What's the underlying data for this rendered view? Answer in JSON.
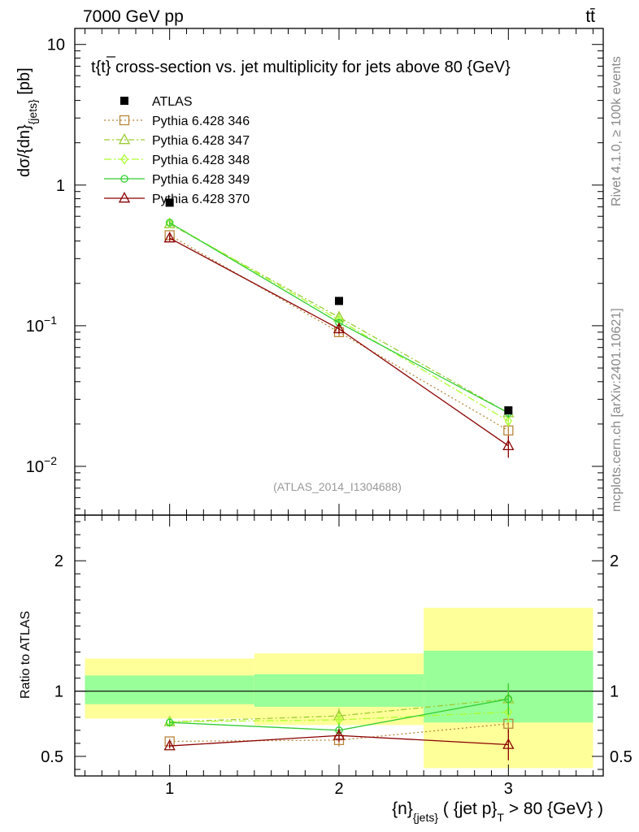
{
  "header": {
    "energy_label": "7000 GeV pp",
    "process_label": "tt̄"
  },
  "side_labels": {
    "rivet": "Rivet 4.1.0, ≥ 100k events",
    "mcplots": "mcplots.cern.ch [arXiv:2401.10621]"
  },
  "chart_data": [
    {
      "type": "line",
      "title": "t{t} cross-section vs. jet multiplicity for jets above 80 {GeV}",
      "title_main": "t",
      "title_brace": "{t}",
      "title_rest": " cross-section vs. jet multiplicity for jets above 80 {GeV}",
      "analysis_tag": "(ATLAS_2014_I1304688)",
      "ylabel": "dσ/{dn}",
      "ylabel_sub": "{jets}",
      "ylabel_unit": " [pb]",
      "yscale": "log",
      "ylim": [
        0.0045,
        13
      ],
      "xlim": [
        0.44,
        3.56
      ],
      "y_ticks": [
        {
          "value": 0.01,
          "mantissa": "10",
          "exp": "−2"
        },
        {
          "value": 0.1,
          "mantissa": "10",
          "exp": "−1"
        },
        {
          "value": 1,
          "mantissa": "1",
          "exp": ""
        },
        {
          "value": 10,
          "mantissa": "10",
          "exp": ""
        }
      ],
      "legend_position": "top-left",
      "x": [
        1,
        2,
        3
      ],
      "data_series": {
        "name": "ATLAS",
        "values": [
          0.75,
          0.15,
          0.025
        ],
        "color": "#000000"
      },
      "series": [
        {
          "name": "Pythia 6.428 346",
          "values": [
            0.44,
            0.09,
            0.018
          ],
          "errors": [
            0.02,
            0.006,
            0.0015
          ],
          "color": "#b8863b",
          "dash": "2,3",
          "marker": "square"
        },
        {
          "name": "Pythia 6.428 347",
          "values": [
            0.53,
            0.115,
            0.024
          ],
          "errors": [
            0.02,
            0.007,
            0.0018
          ],
          "color": "#9acd32",
          "dash": "7,3,2,3",
          "marker": "triangle"
        },
        {
          "name": "Pythia 6.428 348",
          "values": [
            0.54,
            0.11,
            0.021
          ],
          "errors": [
            0.02,
            0.007,
            0.0018
          ],
          "color": "#adff2f",
          "dash": "9,3,2,3",
          "marker": "diamond"
        },
        {
          "name": "Pythia 6.428 349",
          "values": [
            0.54,
            0.105,
            0.024
          ],
          "errors": [
            0.02,
            0.007,
            0.0018
          ],
          "color": "#32cd32",
          "dash": "",
          "marker": "circle"
        },
        {
          "name": "Pythia 6.428 370",
          "values": [
            0.42,
            0.095,
            0.014
          ],
          "errors": [
            0.02,
            0.007,
            0.0025
          ],
          "color": "#8b0000",
          "dash": "",
          "marker": "triangle-open"
        }
      ]
    },
    {
      "type": "line",
      "ylabel": "Ratio to ATLAS",
      "ylim": [
        0.35,
        2.35
      ],
      "xlim": [
        0.44,
        3.56
      ],
      "y_ticks": [
        0.5,
        1,
        2
      ],
      "x_ticks": [
        1,
        2,
        3
      ],
      "xlabel_n": "{n}",
      "xlabel_sub1": "{jets}",
      "xlabel_mid": " ( {jet p}",
      "xlabel_sub2": "T",
      "xlabel_end": " > 80 {GeV} )",
      "bands": [
        {
          "x": [
            0.5,
            1.5
          ],
          "yellow": [
            0.79,
            1.25
          ],
          "green": [
            0.9,
            1.12
          ]
        },
        {
          "x": [
            1.5,
            2.5
          ],
          "yellow": [
            0.74,
            1.29
          ],
          "green": [
            0.88,
            1.13
          ]
        },
        {
          "x": [
            2.5,
            3.5
          ],
          "yellow": [
            0.41,
            1.64
          ],
          "green": [
            0.76,
            1.31
          ]
        }
      ],
      "series": [
        {
          "name": "Pythia 6.428 346",
          "values": [
            0.615,
            0.625,
            0.75
          ],
          "errors": [
            0.02,
            0.05,
            0.08
          ]
        },
        {
          "name": "Pythia 6.428 347",
          "values": [
            0.765,
            0.81,
            0.94
          ],
          "errors": [
            0.03,
            0.06,
            0.1
          ]
        },
        {
          "name": "Pythia 6.428 348",
          "values": [
            0.765,
            0.78,
            0.84
          ],
          "errors": [
            0.03,
            0.05,
            0.08
          ]
        },
        {
          "name": "Pythia 6.428 349",
          "values": [
            0.76,
            0.7,
            0.94
          ],
          "errors": [
            0.03,
            0.05,
            0.12
          ]
        },
        {
          "name": "Pythia 6.428 370",
          "values": [
            0.58,
            0.66,
            0.59
          ],
          "errors": [
            0.02,
            0.05,
            0.12
          ]
        }
      ]
    }
  ]
}
